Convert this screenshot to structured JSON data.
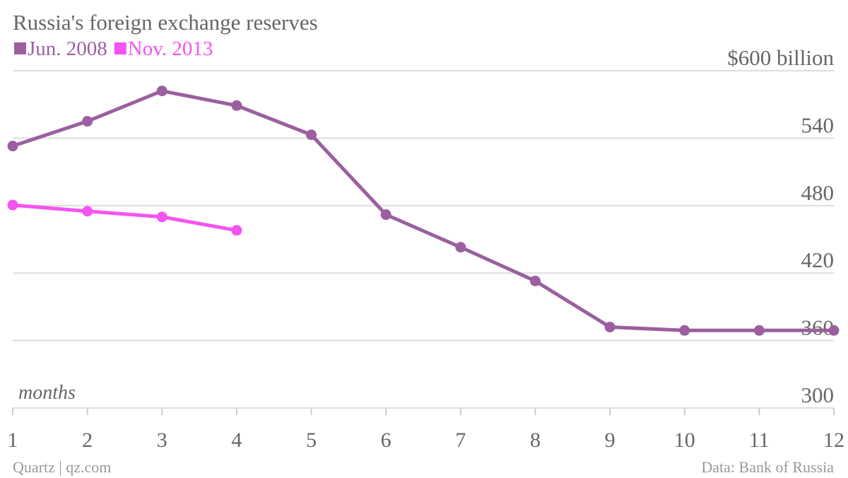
{
  "chart_data": {
    "type": "line",
    "title": "Russia's foreign exchange reserves",
    "x_label": "months",
    "source": "Data: Bank of Russia",
    "credit": "Quartz | qz.com",
    "x": [
      1,
      2,
      3,
      4,
      5,
      6,
      7,
      8,
      9,
      10,
      11,
      12
    ],
    "series": [
      {
        "name": "Jun. 2008",
        "color": "#9b5fa0",
        "values": [
          533,
          555,
          582,
          569,
          543,
          472,
          443,
          413,
          372,
          369,
          369,
          369
        ]
      },
      {
        "name": "Nov. 2013",
        "color": "#f553f0",
        "values": [
          480.5,
          475,
          470,
          458,
          null,
          null,
          null,
          null,
          null,
          null,
          null,
          null
        ]
      }
    ],
    "xlim": [
      1,
      12
    ],
    "xticks": [
      1,
      2,
      3,
      4,
      5,
      6,
      7,
      8,
      9,
      10,
      11,
      12
    ],
    "ylim": [
      300,
      600
    ],
    "yticks": [
      300,
      360,
      420,
      480,
      540,
      {
        "value": 600,
        "label": "$600 billion"
      }
    ],
    "grid": true
  }
}
